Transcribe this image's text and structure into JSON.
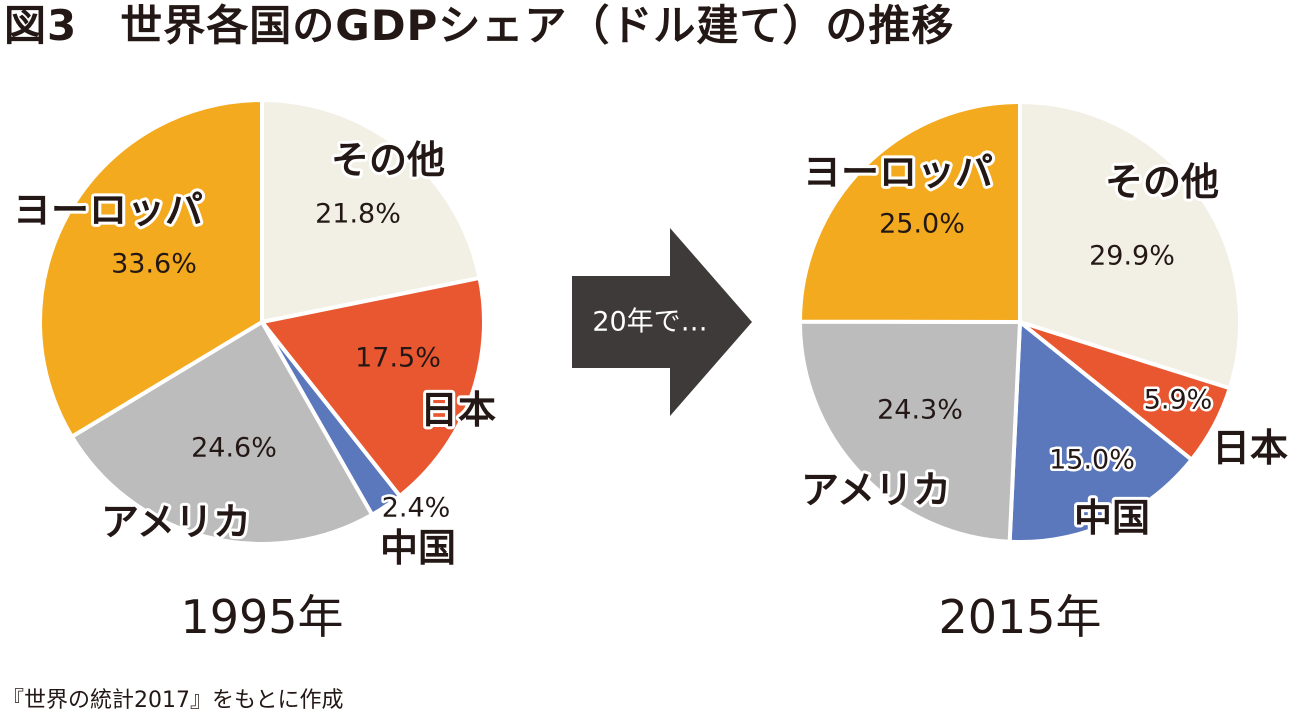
{
  "title": "図3　世界各国のGDPシェア（ドル建て）の推移",
  "arrow_label": "20年で…",
  "source": "『世界の統計2017』をもとに作成",
  "chart_data": [
    {
      "type": "pie",
      "title": "1995年",
      "slices": [
        {
          "label": "その他",
          "value": 21.8,
          "display": "21.8%",
          "color": "#f2efe4"
        },
        {
          "label": "日本",
          "value": 17.5,
          "display": "17.5%",
          "color": "#e85730"
        },
        {
          "label": "中国",
          "value": 2.4,
          "display": "2.4%",
          "color": "#5b78bd"
        },
        {
          "label": "アメリカ",
          "value": 24.6,
          "display": "24.6%",
          "color": "#bcbcbc"
        },
        {
          "label": "ヨーロッパ",
          "value": 33.6,
          "display": "33.6%",
          "color": "#f4aa1e"
        }
      ]
    },
    {
      "type": "pie",
      "title": "2015年",
      "slices": [
        {
          "label": "その他",
          "value": 29.9,
          "display": "29.9%",
          "color": "#f2efe4"
        },
        {
          "label": "日本",
          "value": 5.9,
          "display": "5.9%",
          "color": "#e85730"
        },
        {
          "label": "中国",
          "value": 15.0,
          "display": "15.0%",
          "color": "#5b78bd"
        },
        {
          "label": "アメリカ",
          "value": 24.3,
          "display": "24.3%",
          "color": "#bcbcbc"
        },
        {
          "label": "ヨーロッパ",
          "value": 25.0,
          "display": "25.0%",
          "color": "#f4aa1e"
        }
      ]
    }
  ]
}
